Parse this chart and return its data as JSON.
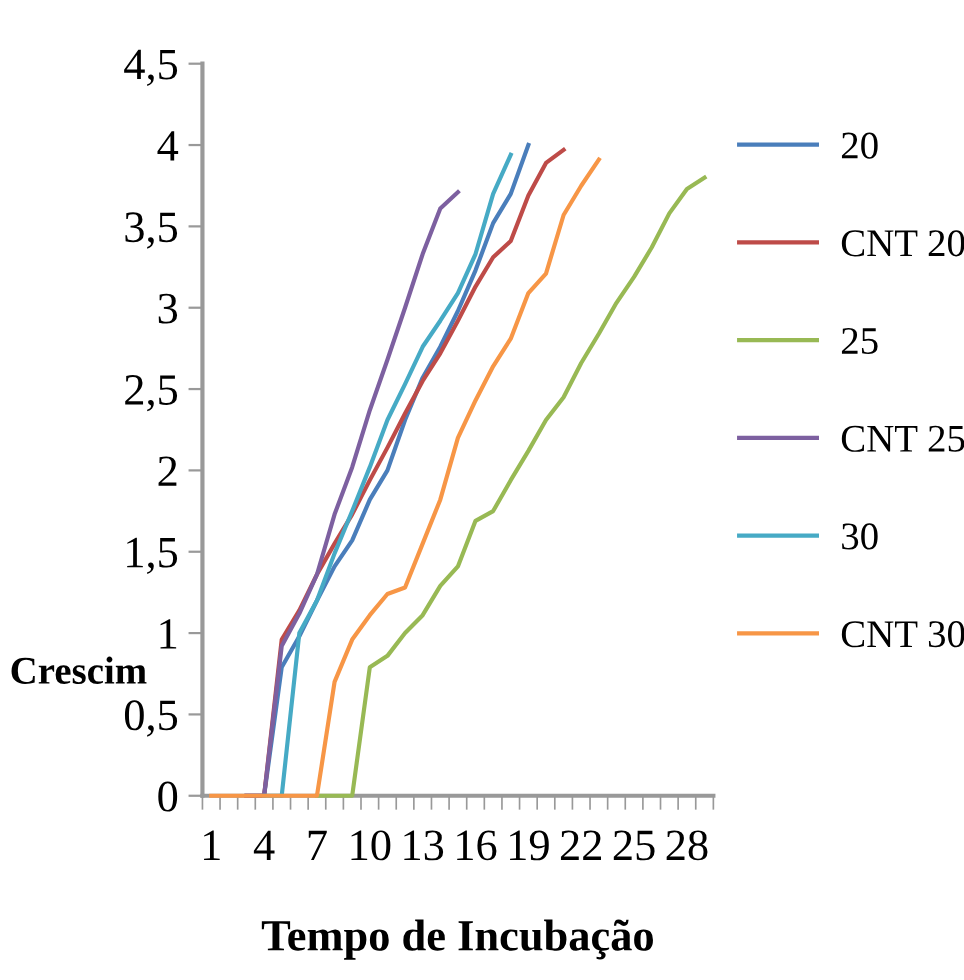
{
  "chart_data": {
    "type": "line",
    "xlabel": "Tempo de Incubação",
    "ylabel": "Crescim",
    "categories": [
      "1",
      null,
      null,
      "4",
      null,
      null,
      "7",
      null,
      null,
      "10",
      null,
      null,
      "13",
      null,
      null,
      "16",
      null,
      null,
      "19",
      null,
      null,
      "22",
      null,
      null,
      "25",
      null,
      null,
      "28",
      null
    ],
    "ylim": [
      0,
      4.5
    ],
    "yticks": [
      {
        "value": 0,
        "label": "0"
      },
      {
        "value": 0.5,
        "label": "0,5"
      },
      {
        "value": 1,
        "label": "1"
      },
      {
        "value": 1.5,
        "label": "1,5"
      },
      {
        "value": 2,
        "label": "2"
      },
      {
        "value": 2.5,
        "label": "2,5"
      },
      {
        "value": 3,
        "label": "3"
      },
      {
        "value": 3.5,
        "label": "3,5"
      },
      {
        "value": 4,
        "label": "4"
      },
      {
        "value": 4.5,
        "label": "4,5"
      }
    ],
    "grid": false,
    "legend": "right",
    "marker": "none",
    "line_style": "solid",
    "series": [
      {
        "name": "20",
        "color": "#4a7ebb",
        "values": [
          null,
          null,
          0,
          0,
          0.79,
          0.98,
          1.2,
          1.41,
          1.57,
          1.82,
          2.0,
          2.31,
          2.57,
          2.76,
          2.98,
          3.23,
          3.52,
          3.7,
          4.0,
          null,
          null,
          null,
          null,
          null,
          null,
          null,
          null,
          null,
          null
        ]
      },
      {
        "name": "CNT 20",
        "color": "#be4b48",
        "values": [
          null,
          null,
          0,
          0,
          0.96,
          1.14,
          1.36,
          1.55,
          1.73,
          1.94,
          2.14,
          2.35,
          2.55,
          2.72,
          2.92,
          3.13,
          3.31,
          3.41,
          3.69,
          3.89,
          3.97,
          null,
          null,
          null,
          null,
          null,
          null,
          null,
          null
        ]
      },
      {
        "name": "25",
        "color": "#98b954",
        "values": [
          null,
          null,
          null,
          null,
          null,
          null,
          0,
          0,
          0,
          0.79,
          0.86,
          1.0,
          1.11,
          1.29,
          1.41,
          1.69,
          1.75,
          1.94,
          2.12,
          2.31,
          2.45,
          2.66,
          2.84,
          3.03,
          3.19,
          3.37,
          3.58,
          3.73,
          3.8
        ]
      },
      {
        "name": "CNT 25",
        "color": "#7d60a0",
        "values": [
          null,
          null,
          0,
          0,
          0.92,
          1.12,
          1.36,
          1.73,
          2.02,
          2.37,
          2.68,
          3.0,
          3.33,
          3.61,
          3.71,
          null,
          null,
          null,
          null,
          null,
          null,
          null,
          null,
          null,
          null,
          null,
          null,
          null,
          null
        ]
      },
      {
        "name": "30",
        "color": "#46aac5",
        "values": [
          null,
          null,
          null,
          0,
          0,
          1.0,
          1.2,
          1.49,
          1.75,
          2.02,
          2.31,
          2.53,
          2.76,
          2.92,
          3.09,
          3.33,
          3.7,
          3.94,
          null,
          null,
          null,
          null,
          null,
          null,
          null,
          null,
          null,
          null,
          null
        ]
      },
      {
        "name": "CNT 30",
        "color": "#f79646",
        "values": [
          0,
          0,
          0,
          0,
          0,
          0,
          0,
          0.7,
          0.96,
          1.11,
          1.24,
          1.28,
          1.55,
          1.82,
          2.2,
          2.43,
          2.64,
          2.81,
          3.09,
          3.21,
          3.57,
          3.75,
          3.91,
          null,
          null,
          null,
          null,
          null,
          null
        ]
      }
    ]
  }
}
